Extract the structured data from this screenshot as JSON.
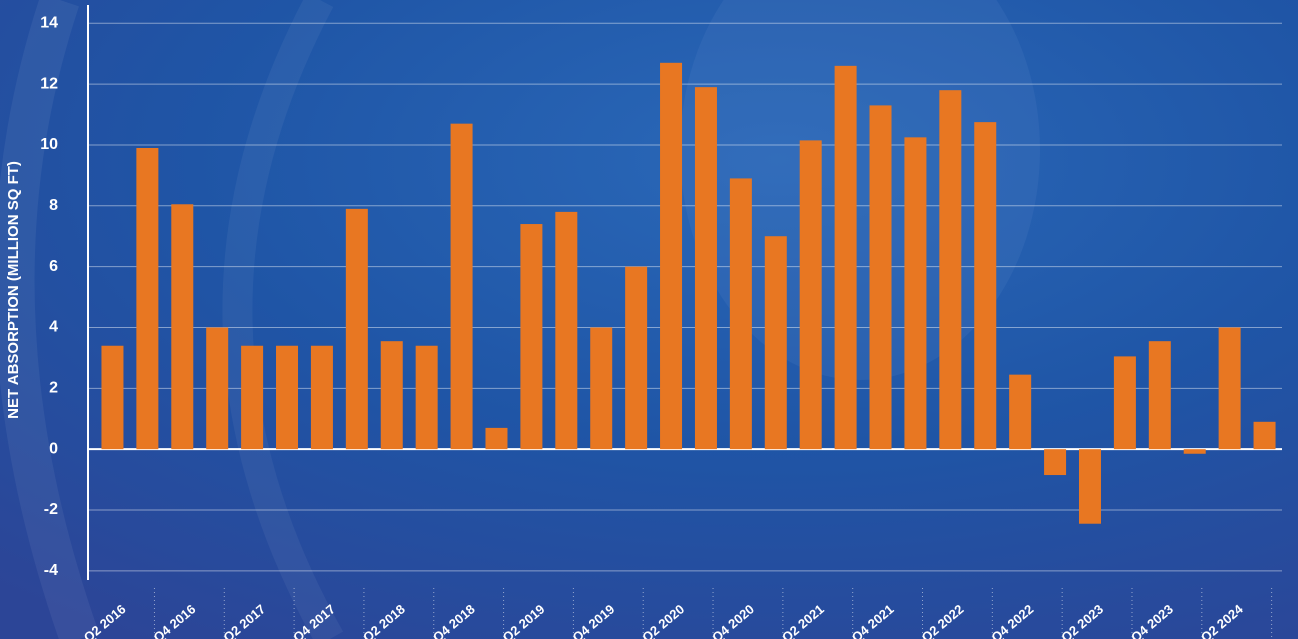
{
  "chart_data": {
    "type": "bar",
    "y_label": "NET ABSORPTION (MILLION SQ FT)",
    "color": "#e87722",
    "grid": true,
    "categories": [
      "Q2 2016",
      null,
      "Q4 2016",
      null,
      "Q2 2017",
      null,
      "Q4 2017",
      null,
      "Q2 2018",
      null,
      "Q4 2018",
      null,
      "Q2 2019",
      null,
      "Q4 2019",
      null,
      "Q2 2020",
      null,
      "Q4 2020",
      null,
      "Q2 2021",
      null,
      "Q4 2021",
      null,
      "Q2 2022",
      null,
      "Q4 2022",
      null,
      "Q2 2023",
      null,
      "Q4 2023",
      null,
      "Q2 2024",
      null
    ],
    "values": [
      3.4,
      9.9,
      8.05,
      4.0,
      3.4,
      3.4,
      3.4,
      7.9,
      3.55,
      3.4,
      10.7,
      0.7,
      7.4,
      7.8,
      4.0,
      6.0,
      12.7,
      11.9,
      8.9,
      7.0,
      10.15,
      12.6,
      11.3,
      10.25,
      11.8,
      10.75,
      2.45,
      -0.85,
      -2.45,
      3.05,
      3.55,
      -0.15,
      4.0,
      0.9
    ],
    "ylim": [
      -4.3,
      14.6
    ],
    "yticks": [
      -4,
      -2,
      0,
      2,
      4,
      6,
      8,
      10,
      12,
      14
    ]
  }
}
